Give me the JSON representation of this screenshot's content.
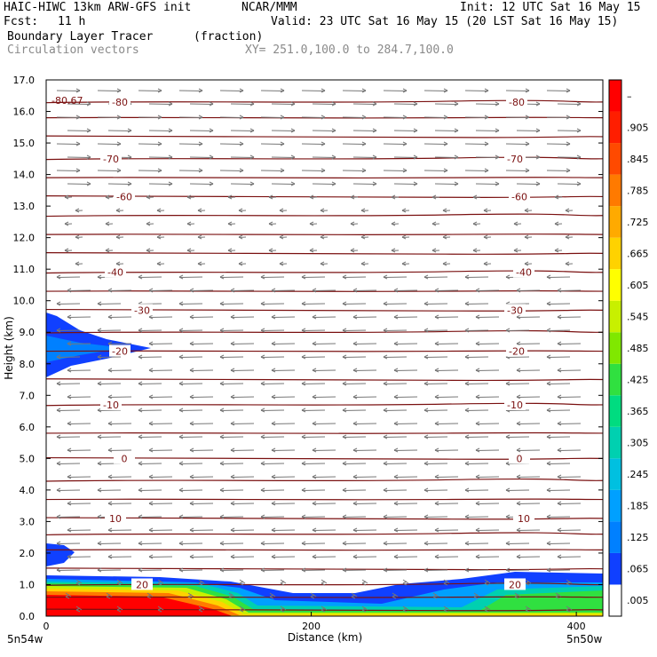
{
  "header": {
    "model": "HAIC-HIWC 13km ARW-GFS init",
    "institution": "NCAR/MMM",
    "init": "Init: 12 UTC Sat 16 May 15",
    "fcst_label": "Fcst:",
    "fcst_value": "11 h",
    "valid": "Valid: 23 UTC Sat 16 May 15 (20 LST Sat 16 May 15)",
    "field": "Boundary Layer Tracer",
    "units": "(fraction)",
    "overlay": "Circulation vectors",
    "xy": "XY= 251.0,100.0 to 284.7,100.0"
  },
  "colors": {
    "contour": "#7a1010",
    "vector": "#777777",
    "colorbar": [
      "#ffffff",
      "#1040ff",
      "#0080ff",
      "#00a0ff",
      "#00c0e0",
      "#00d0b0",
      "#00dc80",
      "#30e040",
      "#80e800",
      "#c8f000",
      "#ffff00",
      "#ffd200",
      "#ffaa00",
      "#ff7a00",
      "#ff4a00",
      "#ff1e00",
      "#ff0000"
    ]
  },
  "chart_data": {
    "type": "heatmap",
    "xlabel": "Distance (km)",
    "ylabel": "Height (km)",
    "xlim": [
      0,
      420
    ],
    "ylim": [
      0.0,
      17.0
    ],
    "x_ticks": [
      "0",
      "200",
      "400"
    ],
    "x_corner_labels": [
      "5n54w",
      "5n50w"
    ],
    "y_ticks": [
      "0.0",
      "1.0",
      "2.0",
      "3.0",
      "4.0",
      "5.0",
      "6.0",
      "7.0",
      "8.0",
      "9.0",
      "10.0",
      "11.0",
      "12.0",
      "13.0",
      "14.0",
      "15.0",
      "16.0",
      "17.0"
    ],
    "colorbar_labels": [
      ".005",
      ".065",
      ".125",
      ".185",
      ".245",
      ".305",
      ".365",
      ".425",
      ".485",
      ".545",
      ".605",
      ".665",
      ".725",
      ".785",
      ".845",
      ".905",
      "–"
    ],
    "temperature_contours": [
      {
        "value": "20",
        "height_km": 1.0
      },
      {
        "value": "10",
        "height_km": 3.1
      },
      {
        "value": "0",
        "height_km": 5.0
      },
      {
        "value": "-10",
        "height_km": 6.7
      },
      {
        "value": "-20",
        "height_km": 8.4
      },
      {
        "value": "-30",
        "height_km": 9.7
      },
      {
        "value": "-40",
        "height_km": 10.9
      },
      {
        "value": "-60",
        "height_km": 13.3
      },
      {
        "value": "-70",
        "height_km": 14.5
      },
      {
        "value": "-80",
        "height_km": 16.3
      }
    ],
    "extra_label": "-80.67"
  }
}
